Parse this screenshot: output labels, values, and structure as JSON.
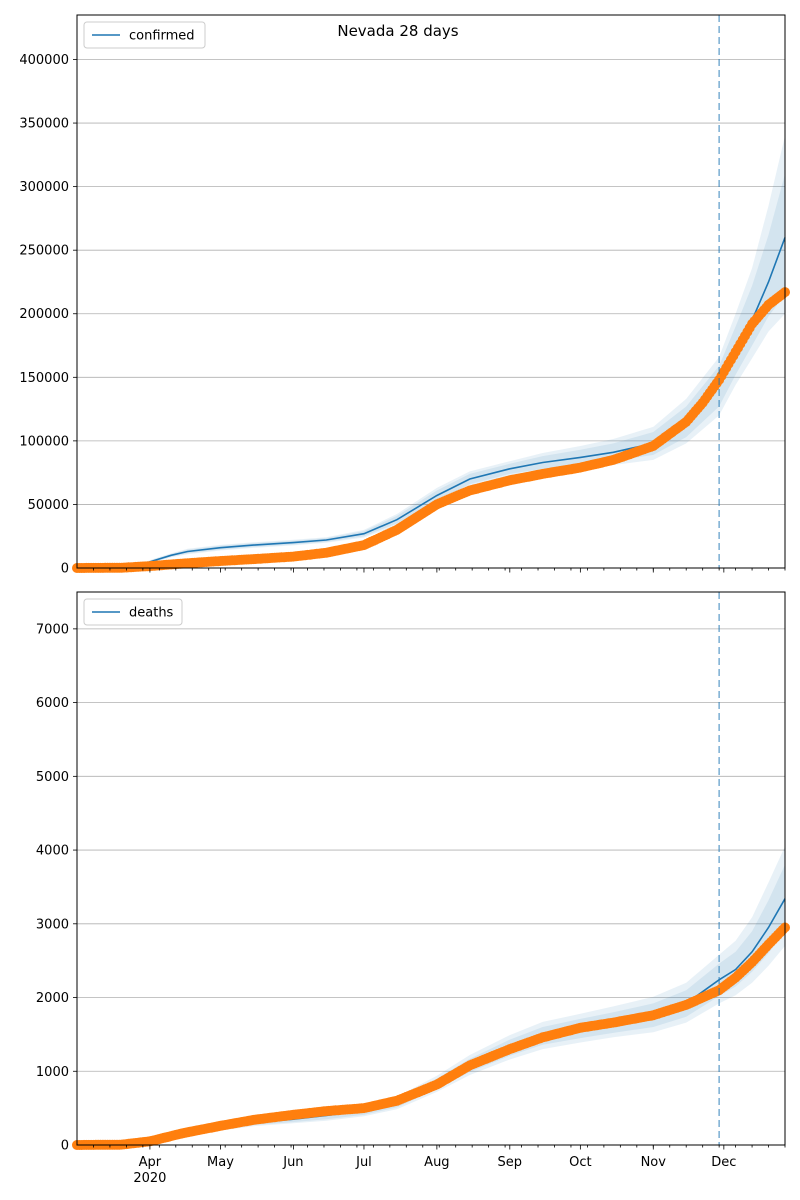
{
  "figure": {
    "title": "Nevada 28 days",
    "x_tick_labels": [
      "Apr",
      "May",
      "Jun",
      "Jul",
      "Aug",
      "Sep",
      "Oct",
      "Nov",
      "Dec"
    ],
    "x_year_label": "2020",
    "forecast_start": "2020-11-29"
  },
  "colors": {
    "model": "#1f77b4",
    "observed": "#ff7f0e",
    "band": "#1f77b4",
    "grid": "#b0b0b0"
  },
  "chart_data": [
    {
      "type": "line",
      "legend": "confirmed",
      "legend_placement": "top-left",
      "x_range": [
        "2020-03-01",
        "2020-12-27"
      ],
      "ylim": [
        0,
        435000
      ],
      "y_ticks": [
        0,
        50000,
        100000,
        150000,
        200000,
        250000,
        300000,
        350000,
        400000
      ],
      "grid": "y",
      "model_fit": {
        "dates": [
          "2020-03-01",
          "2020-03-20",
          "2020-03-27",
          "2020-04-03",
          "2020-04-10",
          "2020-04-17",
          "2020-05-01",
          "2020-05-15",
          "2020-06-01",
          "2020-06-15",
          "2020-07-01",
          "2020-07-15",
          "2020-08-01",
          "2020-08-15",
          "2020-09-01",
          "2020-09-15",
          "2020-10-01",
          "2020-10-15",
          "2020-11-01",
          "2020-11-15",
          "2020-11-29",
          "2020-12-06",
          "2020-12-13",
          "2020-12-20",
          "2020-12-27"
        ],
        "values": [
          0,
          0,
          2000,
          6000,
          10000,
          13000,
          16000,
          18000,
          20000,
          22000,
          27000,
          38000,
          57000,
          70000,
          78000,
          83000,
          87000,
          91000,
          98000,
          115000,
          143000,
          170000,
          195000,
          225000,
          260000
        ],
        "bands": [
          {
            "low": [
              0,
              0,
              1500,
              5000,
              9000,
              11500,
              14500,
              16500,
              18500,
              20500,
              25000,
              35000,
              53000,
              66000,
              74000,
              78000,
              81000,
              84000,
              89000,
              103000,
              127000,
              152000,
              175000,
              198000,
              215000
            ],
            "high": [
              0,
              0,
              2500,
              7000,
              11000,
              14500,
              17500,
              19500,
              21500,
              23500,
              29000,
              41000,
              61000,
              74000,
              82000,
              88000,
              93000,
              98000,
              107000,
              127000,
              159000,
              190000,
              222000,
              262000,
              310000
            ]
          },
          {
            "low": [
              0,
              0,
              1200,
              4500,
              8500,
              10800,
              13800,
              15800,
              17800,
              19800,
              24000,
              33500,
              51000,
              64000,
              72000,
              76000,
              78500,
              81000,
              85000,
              98000,
              120000,
              144000,
              165000,
              186000,
              200000
            ],
            "high": [
              0,
              0,
              2800,
              7500,
              11500,
              15200,
              18200,
              20200,
              22200,
              24200,
              30000,
              42500,
              63000,
              76000,
              84000,
              90500,
              96000,
              101500,
              111000,
              133000,
              166000,
              200000,
              236000,
              285000,
              340000
            ]
          }
        ]
      },
      "observed": {
        "dates": [
          "2020-03-01",
          "2020-03-20",
          "2020-04-01",
          "2020-04-15",
          "2020-05-01",
          "2020-05-15",
          "2020-06-01",
          "2020-06-15",
          "2020-07-01",
          "2020-07-15",
          "2020-08-01",
          "2020-08-15",
          "2020-09-01",
          "2020-09-15",
          "2020-10-01",
          "2020-10-15",
          "2020-11-01",
          "2020-11-15",
          "2020-11-22",
          "2020-11-29",
          "2020-12-06",
          "2020-12-13",
          "2020-12-20",
          "2020-12-27"
        ],
        "values": [
          0,
          200,
          1500,
          3500,
          5500,
          7000,
          9000,
          12000,
          18000,
          30000,
          50000,
          61000,
          69000,
          74000,
          79000,
          85000,
          96000,
          115000,
          130000,
          148000,
          170000,
          192000,
          207000,
          217000
        ]
      }
    },
    {
      "type": "line",
      "legend": "deaths",
      "legend_placement": "top-left",
      "x_range": [
        "2020-03-01",
        "2020-12-27"
      ],
      "ylim": [
        0,
        7500
      ],
      "y_ticks": [
        0,
        1000,
        2000,
        3000,
        4000,
        5000,
        6000,
        7000
      ],
      "grid": "y",
      "model_fit": {
        "dates": [
          "2020-03-01",
          "2020-03-20",
          "2020-04-01",
          "2020-04-15",
          "2020-05-01",
          "2020-05-15",
          "2020-06-01",
          "2020-06-15",
          "2020-07-01",
          "2020-07-15",
          "2020-08-01",
          "2020-08-15",
          "2020-09-01",
          "2020-09-15",
          "2020-10-01",
          "2020-10-15",
          "2020-11-01",
          "2020-11-15",
          "2020-11-29",
          "2020-12-06",
          "2020-12-13",
          "2020-12-20",
          "2020-12-27"
        ],
        "values": [
          0,
          0,
          40,
          130,
          240,
          300,
          350,
          400,
          460,
          570,
          830,
          1080,
          1320,
          1480,
          1580,
          1660,
          1760,
          1920,
          2240,
          2380,
          2620,
          2950,
          3340
        ],
        "bands": [
          {
            "low": [
              0,
              0,
              30,
              110,
              210,
              270,
              310,
              350,
              410,
              510,
              760,
              990,
              1210,
              1360,
              1450,
              1520,
              1600,
              1740,
              2020,
              2150,
              2350,
              2600,
              2900
            ],
            "high": [
              0,
              0,
              50,
              150,
              270,
              330,
              390,
              450,
              510,
              630,
              900,
              1170,
              1430,
              1600,
              1710,
              1800,
              1920,
              2100,
              2460,
              2620,
              2900,
              3320,
              3800
            ]
          },
          {
            "low": [
              0,
              0,
              25,
              100,
              195,
              255,
              295,
              330,
              390,
              485,
              720,
              950,
              1160,
              1300,
              1390,
              1460,
              1530,
              1660,
              1920,
              2030,
              2200,
              2430,
              2700
            ],
            "high": [
              0,
              0,
              55,
              160,
              285,
              345,
              405,
              470,
              530,
              655,
              940,
              1220,
              1490,
              1670,
              1780,
              1880,
              2010,
              2200,
              2580,
              2770,
              3090,
              3560,
              4050
            ]
          }
        ]
      },
      "observed": {
        "dates": [
          "2020-03-01",
          "2020-03-20",
          "2020-04-01",
          "2020-04-15",
          "2020-05-01",
          "2020-05-15",
          "2020-06-01",
          "2020-06-15",
          "2020-07-01",
          "2020-07-15",
          "2020-08-01",
          "2020-08-15",
          "2020-09-01",
          "2020-09-15",
          "2020-10-01",
          "2020-10-15",
          "2020-11-01",
          "2020-11-15",
          "2020-11-29",
          "2020-12-06",
          "2020-12-13",
          "2020-12-20",
          "2020-12-27"
        ],
        "values": [
          0,
          5,
          50,
          160,
          260,
          340,
          410,
          460,
          500,
          600,
          820,
          1080,
          1300,
          1460,
          1590,
          1660,
          1760,
          1900,
          2100,
          2270,
          2480,
          2720,
          2950
        ]
      }
    }
  ]
}
